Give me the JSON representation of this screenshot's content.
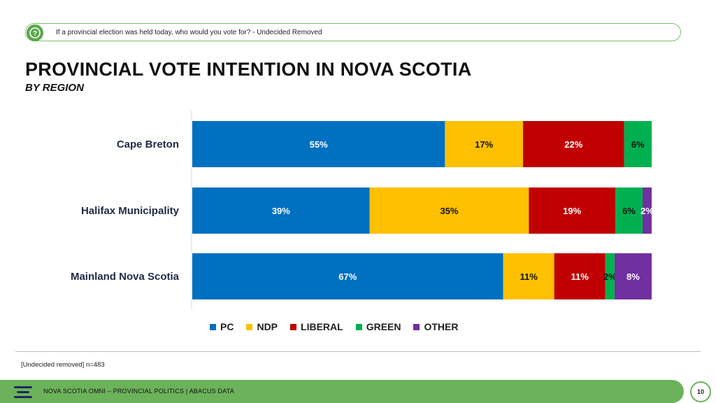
{
  "question": "If a provincial election was held today, who would you vote for?  - Undecided Removed",
  "title": "PROVINCIAL VOTE INTENTION IN NOVA SCOTIA",
  "subtitle": "BY REGION",
  "colors": {
    "pc": "#0070c0",
    "ndp": "#ffc000",
    "liberal": "#c00000",
    "green": "#00b050",
    "other": "#7030a0",
    "accent": "#6cb25a"
  },
  "chart_data": {
    "type": "bar",
    "orientation": "horizontal",
    "stacked": true,
    "categories": [
      "Cape Breton",
      "Halifax Municipality",
      "Mainland Nova Scotia"
    ],
    "series": [
      {
        "name": "PC",
        "values": [
          55,
          39,
          67
        ],
        "labels": [
          "55%",
          "39%",
          "67%"
        ],
        "color": "#0070c0"
      },
      {
        "name": "NDP",
        "values": [
          17,
          35,
          11
        ],
        "labels": [
          "17%",
          "35%",
          "11%"
        ],
        "color": "#ffc000"
      },
      {
        "name": "LIBERAL",
        "values": [
          22,
          19,
          11
        ],
        "labels": [
          "22%",
          "19%",
          "11%"
        ],
        "color": "#c00000"
      },
      {
        "name": "GREEN",
        "values": [
          6,
          6,
          2
        ],
        "labels": [
          "6%",
          "6%",
          "2%"
        ],
        "color": "#00b050"
      },
      {
        "name": "OTHER",
        "values": [
          0,
          2,
          8
        ],
        "labels": [
          "",
          "2%",
          "8%"
        ],
        "color": "#7030a0"
      }
    ],
    "legend_position": "bottom"
  },
  "note": "[Undecided removed] n=483",
  "footer": "NOVA SCOTIA OMNI – PROVINCIAL POLITICS | ABACUS DATA",
  "page_number": "10"
}
